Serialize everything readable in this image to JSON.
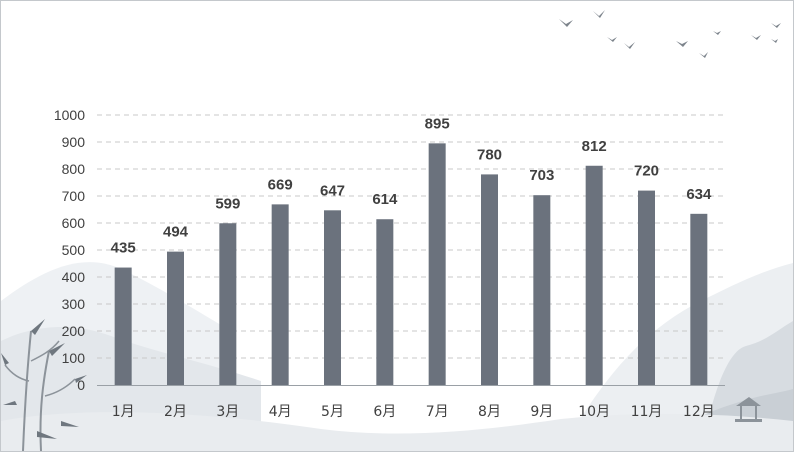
{
  "chart_data": {
    "type": "bar",
    "categories": [
      "1月",
      "2月",
      "3月",
      "4月",
      "5月",
      "6月",
      "7月",
      "8月",
      "9月",
      "10月",
      "11月",
      "12月"
    ],
    "values": [
      435,
      494,
      599,
      669,
      647,
      614,
      895,
      780,
      703,
      812,
      720,
      634
    ],
    "yticks": [
      "0",
      "100",
      "200",
      "300",
      "400",
      "500",
      "600",
      "700",
      "800",
      "900",
      "1000"
    ],
    "ylim": [
      0,
      1000
    ],
    "grid": "horizontal-dashed",
    "legend": "none",
    "data_labels": true
  },
  "colors": {
    "bar": "#6b727d",
    "grid": "#c8c8c8",
    "axis": "#9aa0a6",
    "text": "#404040",
    "frame": "#c4c8cc"
  },
  "decoration": {
    "theme": "ink-wash-landscape",
    "icons": [
      "flying-birds-icon",
      "mountain-icon",
      "bamboo-icon",
      "pavilion-icon"
    ]
  }
}
